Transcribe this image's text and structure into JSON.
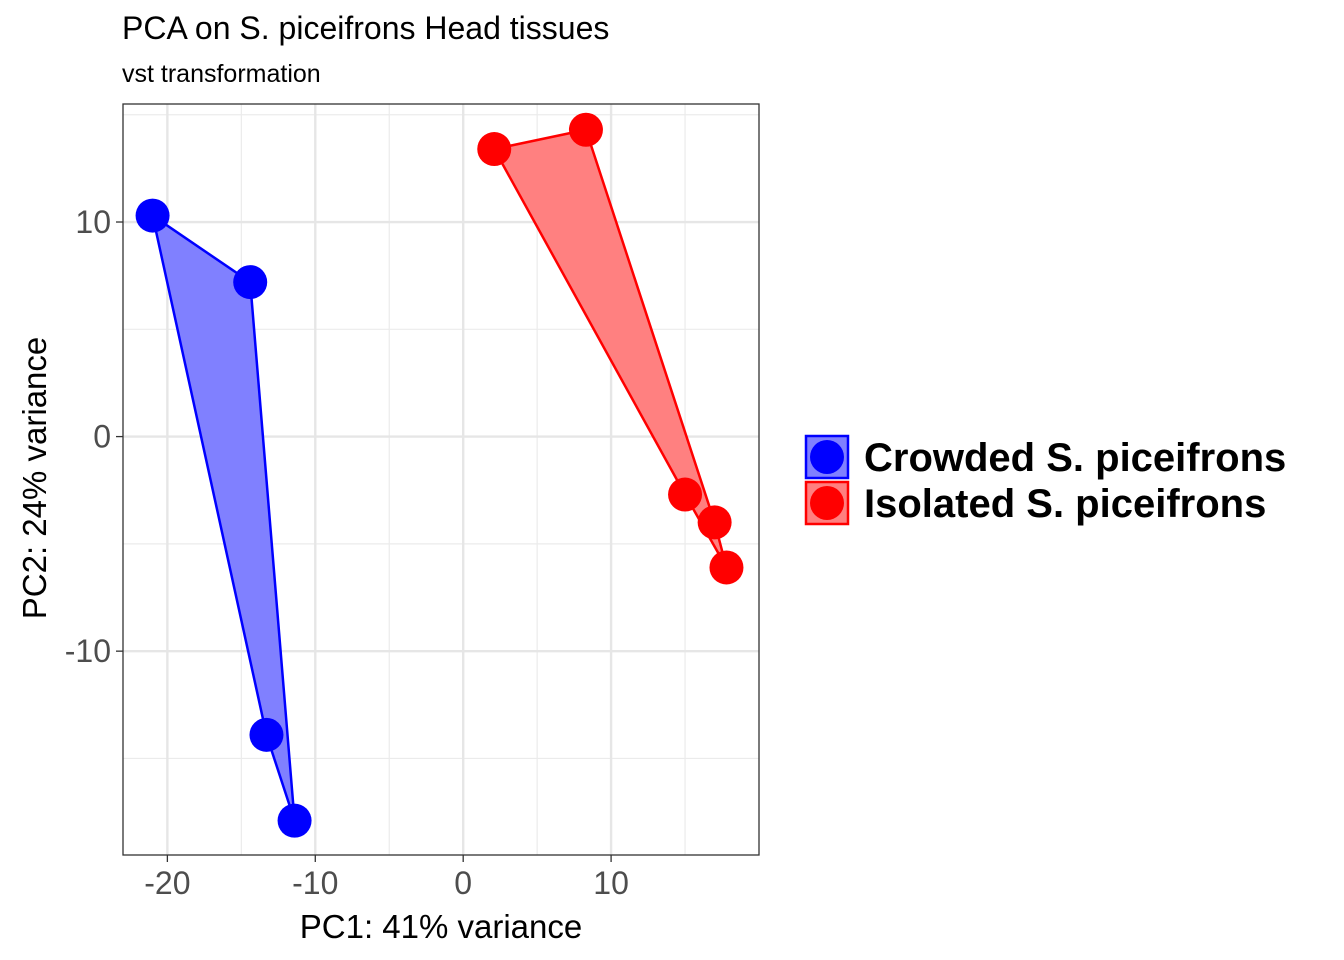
{
  "chart_data": {
    "type": "scatter",
    "title": "PCA on S. piceifrons Head tissues",
    "subtitle": "vst transformation",
    "xlabel": "PC1: 41% variance",
    "ylabel": "PC2: 24% variance",
    "xlim": [
      -23,
      20
    ],
    "ylim": [
      -19.5,
      15.5
    ],
    "x_ticks": [
      -20,
      -10,
      0,
      10
    ],
    "y_ticks": [
      -10,
      0,
      10
    ],
    "x_tick_labels": [
      "-20",
      "-10",
      "0",
      "10"
    ],
    "y_tick_labels": [
      "-10",
      "0",
      "10"
    ],
    "grid": true,
    "hulls": true,
    "legend_position": "right",
    "series": [
      {
        "name": "Crowded S. piceifrons",
        "color": "#0000ff",
        "fill": "#8080ff",
        "points": [
          {
            "x": -21.0,
            "y": 10.3
          },
          {
            "x": -14.4,
            "y": 7.2
          },
          {
            "x": -13.3,
            "y": -13.9
          },
          {
            "x": -11.4,
            "y": -17.9
          }
        ]
      },
      {
        "name": "Isolated S. piceifrons",
        "color": "#ff0000",
        "fill": "#ff8080",
        "points": [
          {
            "x": 2.1,
            "y": 13.4
          },
          {
            "x": 8.3,
            "y": 14.3
          },
          {
            "x": 15.0,
            "y": -2.7
          },
          {
            "x": 17.0,
            "y": -4.0
          },
          {
            "x": 17.8,
            "y": -6.1
          }
        ]
      }
    ]
  }
}
